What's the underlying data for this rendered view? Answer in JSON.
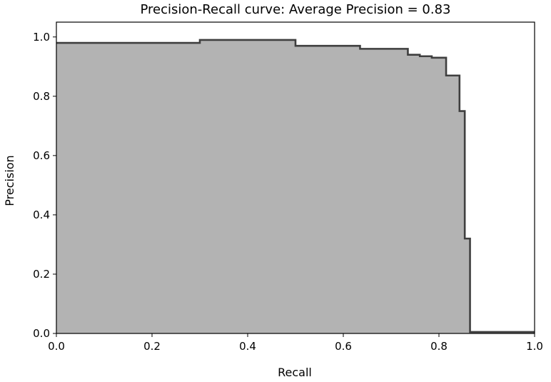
{
  "chart_data": {
    "type": "area",
    "title": "Precision-Recall curve: Average Precision = 0.83",
    "xlabel": "Recall",
    "ylabel": "Precision",
    "xlim": [
      0.0,
      1.0
    ],
    "ylim": [
      0.0,
      1.05
    ],
    "xticks": [
      0.0,
      0.2,
      0.4,
      0.6,
      0.8,
      1.0
    ],
    "xtick_labels": [
      "0.0",
      "0.2",
      "0.4",
      "0.6",
      "0.8",
      "1.0"
    ],
    "yticks": [
      0.0,
      0.2,
      0.4,
      0.6,
      0.8,
      1.0
    ],
    "ytick_labels": [
      "0.0",
      "0.2",
      "0.4",
      "0.6",
      "0.8",
      "1.0"
    ],
    "grid": false,
    "fill_color": "#b3b3b3",
    "line_color": "#3f3f3f",
    "series": [
      {
        "step": "post",
        "points": [
          [
            0.0,
            0.98
          ],
          [
            0.3,
            0.99
          ],
          [
            0.5,
            0.97
          ],
          [
            0.635,
            0.96
          ],
          [
            0.735,
            0.94
          ],
          [
            0.76,
            0.935
          ],
          [
            0.785,
            0.93
          ],
          [
            0.815,
            0.87
          ],
          [
            0.843,
            0.75
          ],
          [
            0.854,
            0.32
          ],
          [
            0.865,
            0.005
          ],
          [
            1.0,
            0.005
          ]
        ]
      }
    ]
  }
}
